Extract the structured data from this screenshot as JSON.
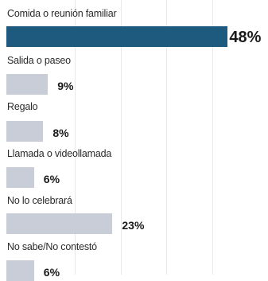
{
  "chart_data": {
    "type": "bar",
    "orientation": "horizontal",
    "categories": [
      "Comida o reunión familiar",
      "Salida o paseo",
      "Regalo",
      "Llamada o videollamada",
      "No lo celebrará",
      "No sabe/No contestó"
    ],
    "values": [
      48,
      9,
      8,
      6,
      23,
      6
    ],
    "value_labels": [
      "48%",
      "9%",
      "8%",
      "6%",
      "23%",
      "6%"
    ],
    "highlight_index": 0,
    "colors": {
      "highlight": "#1d5a7e",
      "default": "#c9cdd8",
      "gridline": "#e9e9ec"
    },
    "grid": true,
    "legend": "none"
  }
}
